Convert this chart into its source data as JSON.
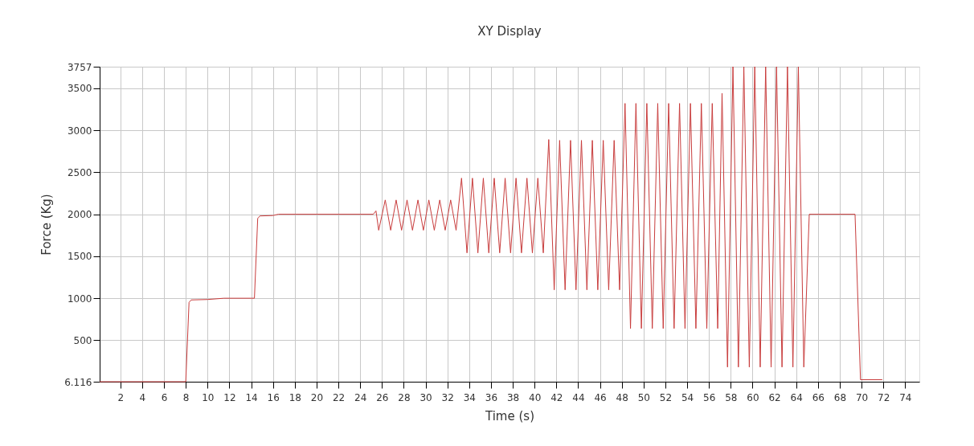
{
  "chart_data": {
    "type": "line",
    "title": "XY Display",
    "xlabel": "Time (s)",
    "ylabel": "Force (Kg)",
    "xlim": [
      0.1,
      75.3
    ],
    "xticks": [
      2,
      4,
      6,
      8,
      10,
      12,
      14,
      16,
      18,
      20,
      22,
      24,
      26,
      28,
      30,
      32,
      34,
      36,
      38,
      40,
      42,
      44,
      46,
      48,
      50,
      52,
      54,
      56,
      58,
      60,
      62,
      64,
      66,
      68,
      70,
      72,
      74
    ],
    "ylim": [
      6.116,
      3757
    ],
    "yticks": [
      6.116,
      500,
      1000,
      1500,
      2000,
      2500,
      3000,
      3500,
      3757
    ],
    "grid": true,
    "line_style": "solid",
    "series": [
      {
        "color": "#c83c3c",
        "x": [
          0.1,
          8.0,
          8.3,
          8.5,
          10,
          11.5,
          14,
          14.3,
          14.6,
          14.8,
          16,
          16.5,
          25.2,
          25.45,
          25.7,
          26.3,
          26.8,
          27.3,
          27.8,
          28.3,
          28.8,
          29.3,
          29.8,
          30.3,
          30.8,
          31.3,
          31.8,
          32.3,
          32.8,
          33.3,
          33.8,
          34.3,
          34.8,
          35.3,
          35.8,
          36.3,
          36.8,
          37.3,
          37.8,
          38.3,
          38.8,
          39.3,
          39.8,
          40.3,
          40.8,
          41.3,
          41.8,
          42.3,
          42.8,
          43.3,
          43.8,
          44.3,
          44.8,
          45.3,
          45.8,
          46.3,
          46.8,
          47.3,
          47.8,
          48.3,
          48.8,
          49.3,
          49.8,
          50.3,
          50.8,
          51.3,
          51.8,
          52.3,
          52.8,
          53.3,
          53.8,
          54.3,
          54.8,
          55.3,
          55.8,
          56.3,
          56.8,
          57.2,
          57.7,
          58.2,
          58.7,
          59.2,
          59.7,
          60.2,
          60.7,
          61.2,
          61.7,
          62.2,
          62.7,
          63.2,
          63.7,
          64.2,
          64.7,
          65.2,
          69.4,
          69.9,
          71.9
        ],
        "values": [
          6.116,
          6.116,
          950,
          980,
          985,
          1000,
          1000,
          1000,
          1950,
          1980,
          1985,
          2000,
          2000,
          2040,
          1810,
          2170,
          1810,
          2170,
          1810,
          2170,
          1810,
          2170,
          1810,
          2170,
          1810,
          2170,
          1810,
          2170,
          1810,
          2430,
          1540,
          2430,
          1540,
          2430,
          1540,
          2430,
          1540,
          2430,
          1540,
          2430,
          1540,
          2430,
          1540,
          2430,
          1540,
          2890,
          1100,
          2880,
          1100,
          2880,
          1100,
          2880,
          1100,
          2880,
          1100,
          2880,
          1100,
          2880,
          1100,
          3320,
          640,
          3320,
          640,
          3320,
          640,
          3320,
          640,
          3320,
          640,
          3320,
          640,
          3320,
          640,
          3320,
          640,
          3320,
          640,
          3440,
          180,
          3757,
          180,
          3757,
          180,
          3757,
          180,
          3757,
          180,
          3757,
          180,
          3757,
          180,
          3757,
          180,
          2000,
          2000,
          30,
          30
        ]
      }
    ]
  }
}
